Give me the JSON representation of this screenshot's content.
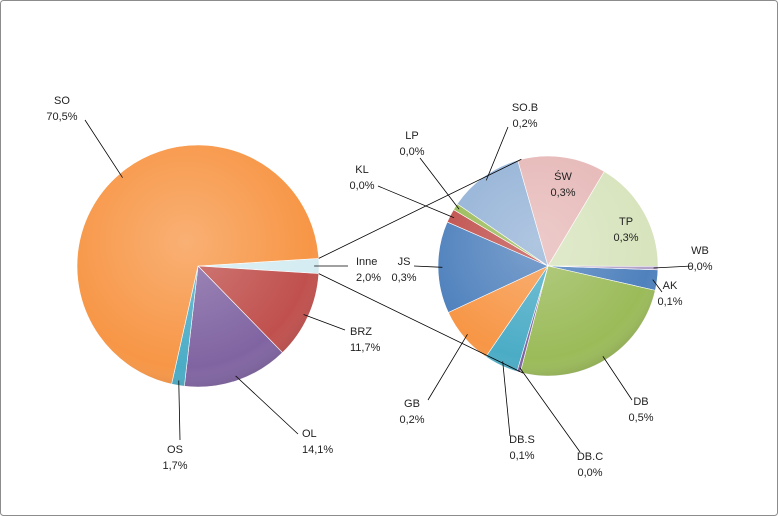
{
  "chart_data": [
    {
      "type": "pie",
      "categories": [
        "Inne",
        "BRZ",
        "OL",
        "OS",
        "SO"
      ],
      "values": [
        2.0,
        11.7,
        14.1,
        1.7,
        70.5
      ],
      "value_labels": [
        "2,0%",
        "11,7%",
        "14,1%",
        "1,7%",
        "70,5%"
      ],
      "colors": [
        "#d4ecf2",
        "#c0504d",
        "#8064a2",
        "#4bacc6",
        "#f79646"
      ]
    },
    {
      "type": "pie",
      "categories": [
        "AK",
        "DB",
        "DB.C",
        "DB.S",
        "GB",
        "JS",
        "KL",
        "LP",
        "SO.B",
        "ŚW",
        "TP",
        "WB"
      ],
      "values": [
        0.06,
        0.51,
        0.01,
        0.1,
        0.17,
        0.27,
        0.04,
        0.02,
        0.22,
        0.26,
        0.33,
        0.01
      ],
      "value_labels": [
        "0,1%",
        "0,5%",
        "0,0%",
        "0,1%",
        "0,2%",
        "0,3%",
        "0,0%",
        "0,0%",
        "0,2%",
        "0,3%",
        "0,3%",
        "0,0%"
      ],
      "colors": [
        "#4f81bd",
        "#9bbb59",
        "#8064a2",
        "#4bacc6",
        "#f79646",
        "#4f81bd",
        "#c0504d",
        "#9bbb59",
        "#95b3d7",
        "#e6b9b8",
        "#d7e4bd",
        "#b3a2c7"
      ]
    }
  ]
}
